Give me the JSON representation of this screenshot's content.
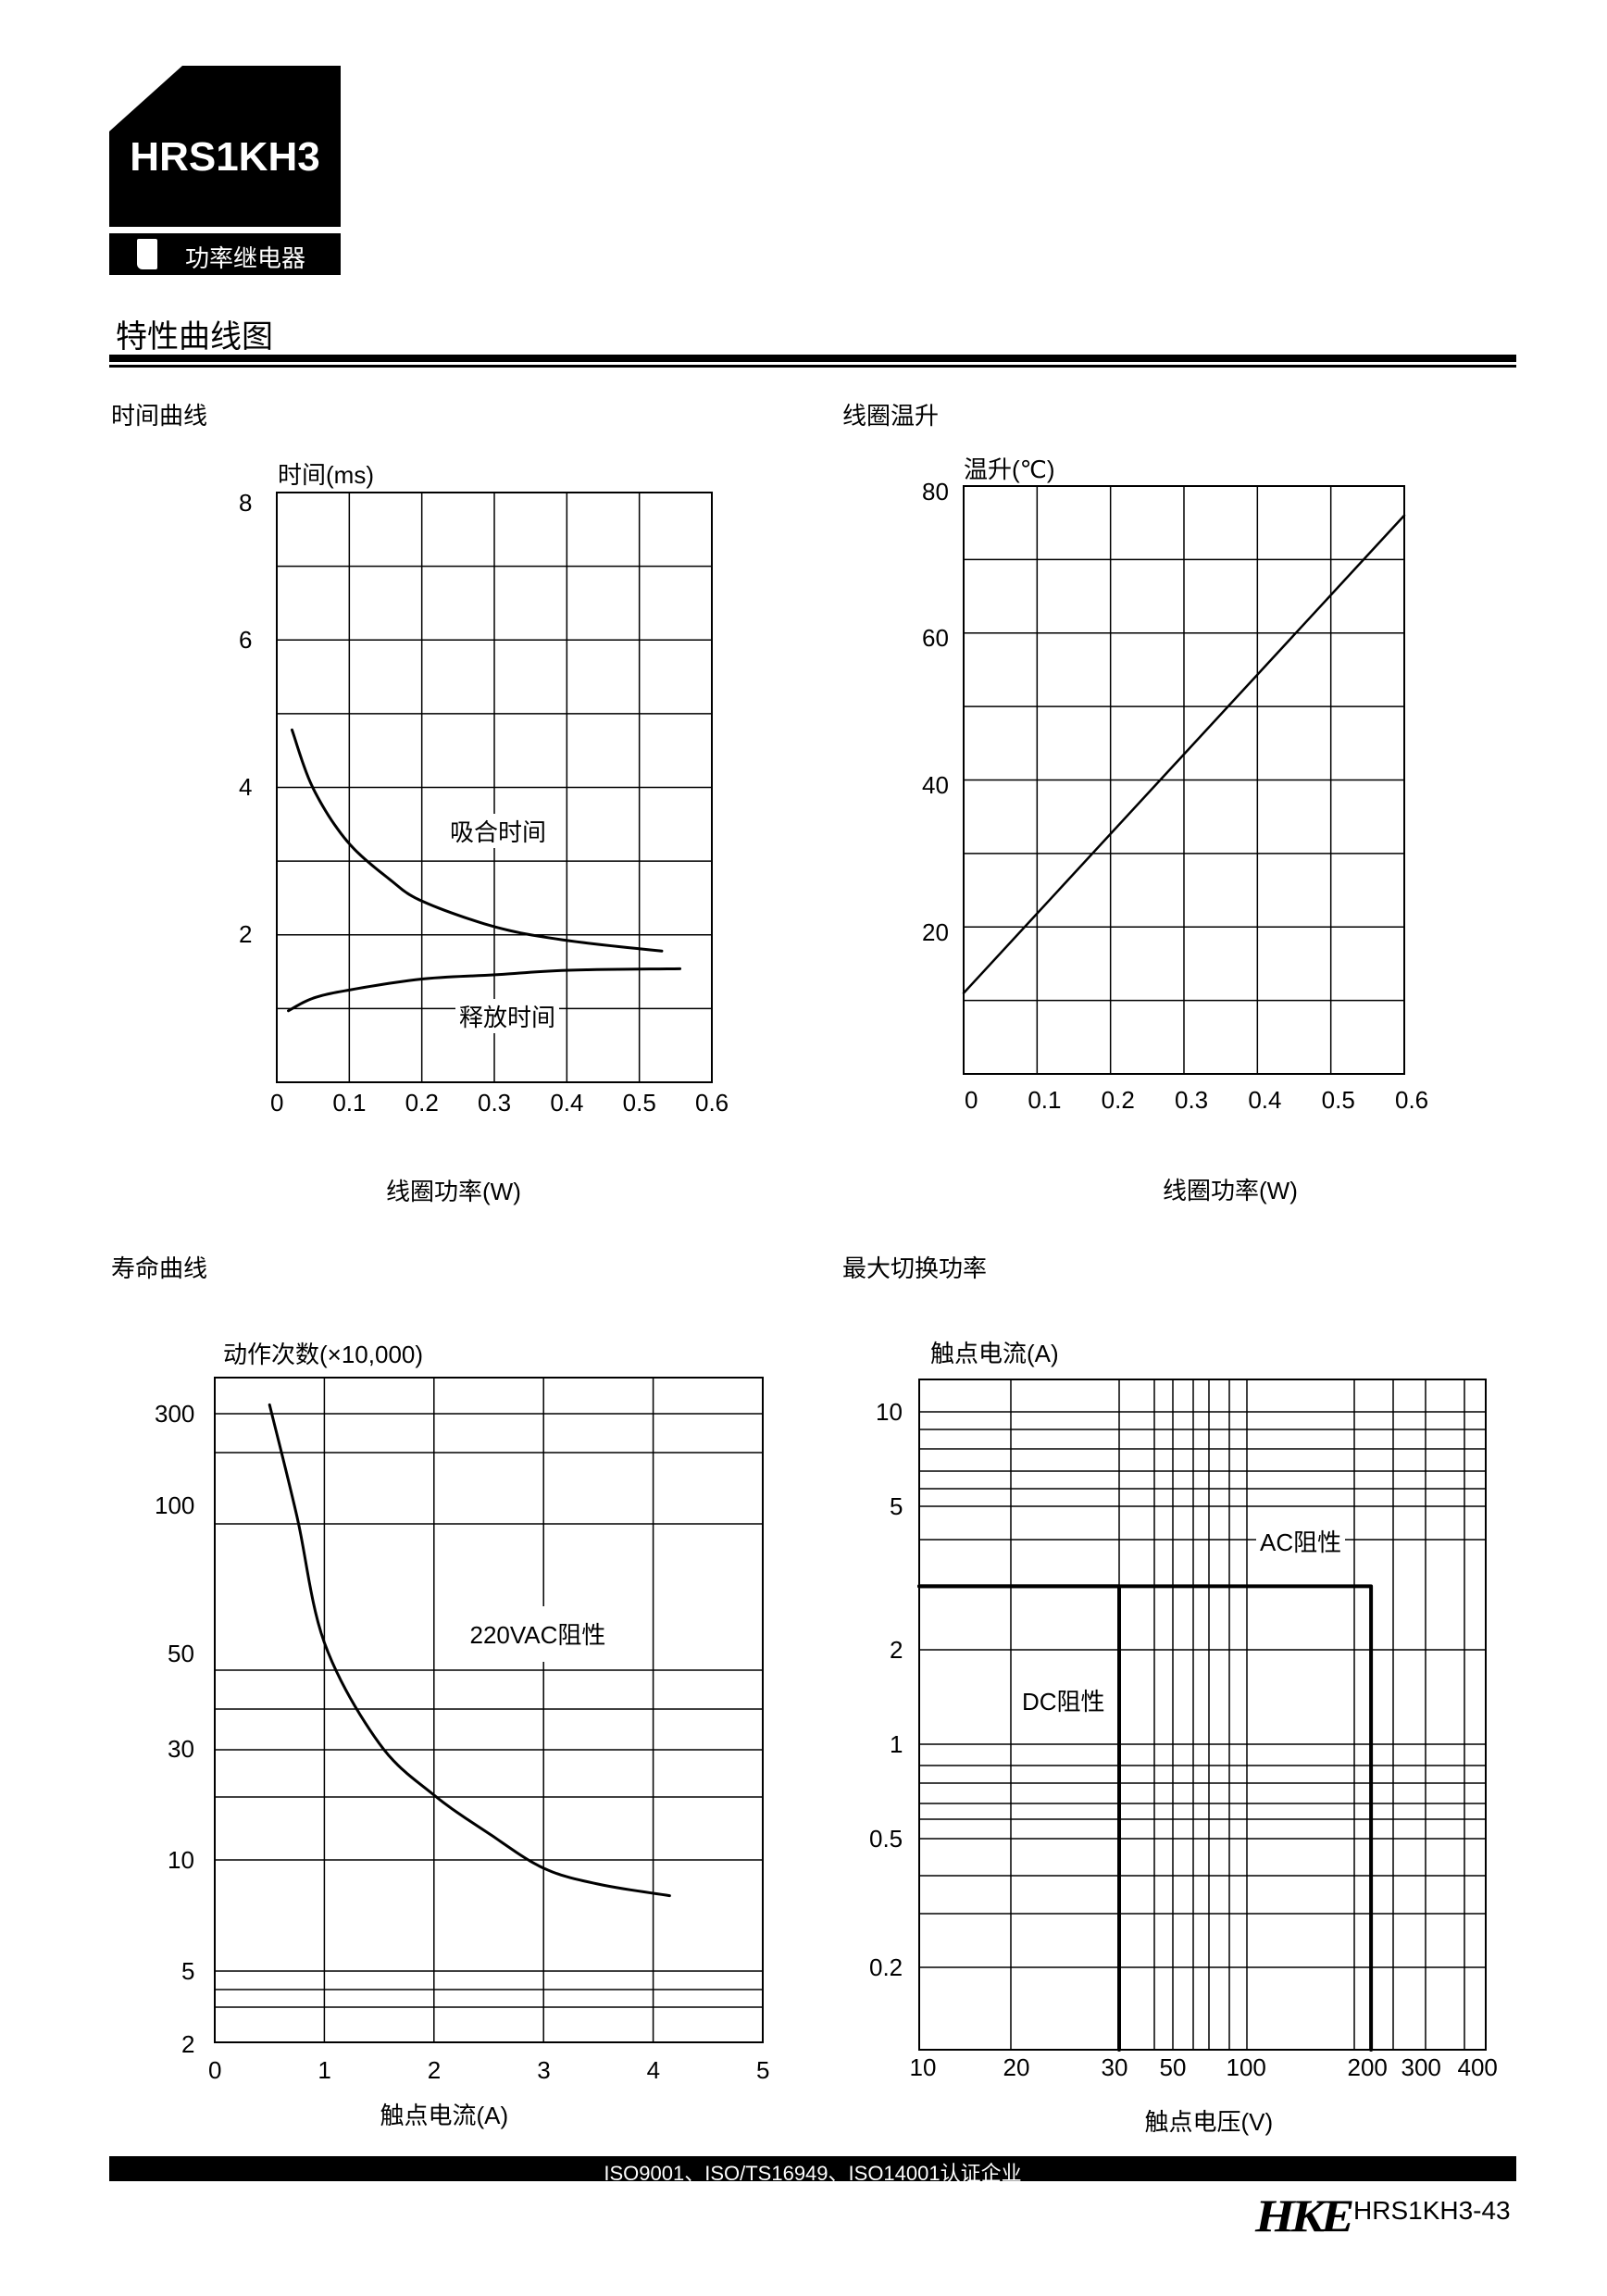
{
  "header": {
    "model": "HRS1KH3",
    "category": "功率继电器",
    "page_title": "特性曲线图"
  },
  "footer": {
    "certifications": "ISO9001、ISO/TS16949、ISO14001认证企业",
    "brand": "HKE",
    "page_number": "HRS1KH3-43"
  },
  "chart_data": [
    {
      "section_title": "时间曲线",
      "type": "line",
      "ylabel": "时间(ms)",
      "xlabel": "线圈功率(W)",
      "xlim": [
        0,
        0.6
      ],
      "ylim": [
        0,
        8
      ],
      "x_ticks": [
        "0",
        "0.1",
        "0.2",
        "0.3",
        "0.4",
        "0.5",
        "0.6"
      ],
      "y_ticks": [
        "2",
        "4",
        "6",
        "8"
      ],
      "grid": true,
      "series": [
        {
          "name": "吸合时间",
          "points": [
            [
              0.021,
              4.78
            ],
            [
              0.05,
              3.99
            ],
            [
              0.097,
              3.27
            ],
            [
              0.156,
              2.75
            ],
            [
              0.202,
              2.45
            ],
            [
              0.304,
              2.1
            ],
            [
              0.403,
              1.92
            ],
            [
              0.531,
              1.78
            ]
          ]
        },
        {
          "name": "释放时间",
          "points": [
            [
              0.016,
              0.97
            ],
            [
              0.05,
              1.14
            ],
            [
              0.099,
              1.25
            ],
            [
              0.2,
              1.4
            ],
            [
              0.304,
              1.46
            ],
            [
              0.403,
              1.52
            ],
            [
              0.556,
              1.54
            ]
          ]
        }
      ]
    },
    {
      "section_title": "线圈温升",
      "type": "line",
      "ylabel": "温升(℃)",
      "xlabel": "线圈功率(W)",
      "xlim": [
        0,
        0.6
      ],
      "ylim": [
        0,
        80
      ],
      "x_ticks": [
        "0",
        "0.1",
        "0.2",
        "0.3",
        "0.4",
        "0.5",
        "0.6"
      ],
      "y_ticks": [
        "20",
        "40",
        "60",
        "80"
      ],
      "grid": true,
      "series": [
        {
          "points": [
            [
              0,
              11
            ],
            [
              0.6,
              76
            ]
          ]
        }
      ]
    },
    {
      "section_title": "寿命曲线",
      "type": "line",
      "ylabel": "动作次数(×10,000)",
      "xlabel": "触点电流(A)",
      "xlim": [
        0,
        5
      ],
      "y_scale": "log",
      "x_ticks": [
        "0",
        "1",
        "2",
        "3",
        "4",
        "5"
      ],
      "y_ticks": [
        "2",
        "5",
        "10",
        "30",
        "50",
        "100",
        "300"
      ],
      "grid": true,
      "series": [
        {
          "name": "220VAC阻性",
          "points": [
            [
              0.5,
              330
            ],
            [
              0.75,
              100
            ],
            [
              1.0,
              55
            ],
            [
              1.5,
              31
            ],
            [
              2.0,
              19
            ],
            [
              2.5,
              13
            ],
            [
              3.0,
              9.5
            ],
            [
              3.5,
              8.6
            ],
            [
              4.15,
              8
            ]
          ]
        }
      ]
    },
    {
      "section_title": "最大切换功率",
      "type": "line",
      "ylabel": "触点电流(A)",
      "xlabel": "触点电压(V)",
      "x_scale": "log",
      "y_scale": "log",
      "x_ticks": [
        "10",
        "20",
        "30",
        "50",
        "100",
        "200",
        "300",
        "400"
      ],
      "y_ticks": [
        "0.2",
        "0.5",
        "1",
        "2",
        "5",
        "10"
      ],
      "grid": true,
      "series": [
        {
          "name": "DC阻性",
          "points": [
            [
              10,
              3
            ],
            [
              30,
              3
            ],
            [
              30,
              0.13
            ]
          ]
        },
        {
          "name": "AC阻性",
          "points": [
            [
              10,
              3
            ],
            [
              220,
              3
            ],
            [
              220,
              0.13
            ]
          ]
        }
      ]
    }
  ]
}
